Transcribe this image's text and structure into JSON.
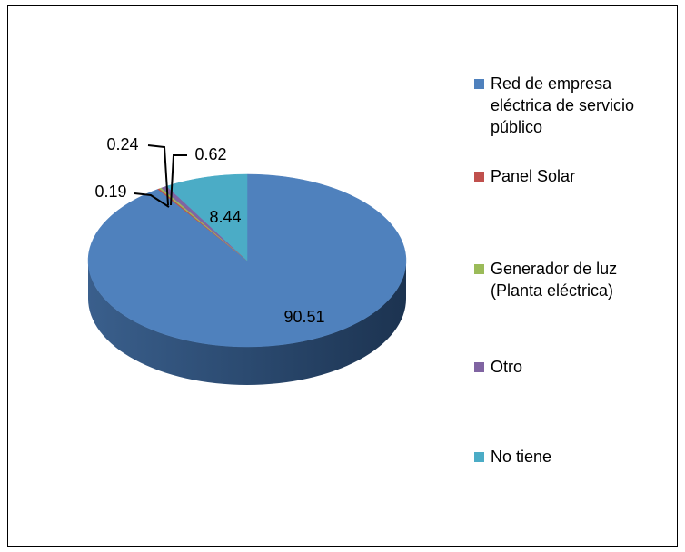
{
  "chart_data": {
    "type": "pie",
    "3d": true,
    "categories": [
      "Red de empresa eléctrica de servicio público",
      "Panel Solar",
      "Generador de luz (Planta eléctrica)",
      "Otro",
      "No tiene"
    ],
    "values": [
      90.51,
      0.19,
      0.24,
      0.62,
      8.44
    ],
    "colors": [
      "#4f81bd",
      "#c0504d",
      "#9bbb59",
      "#8064a2",
      "#4bacc6"
    ],
    "legend": "right"
  }
}
